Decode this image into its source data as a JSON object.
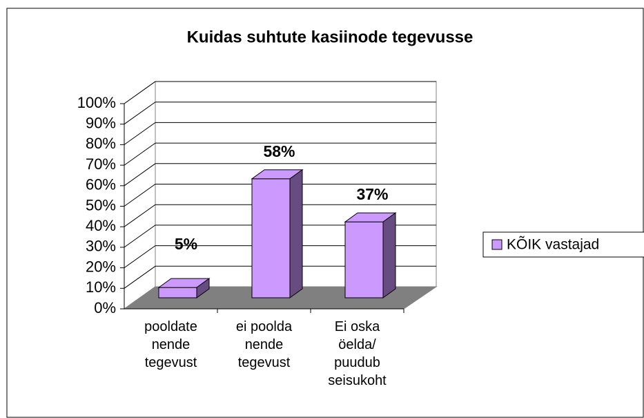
{
  "chart_data": {
    "type": "bar3d",
    "title": "Kuidas suhtute kasiinode tegevusse",
    "categories": [
      "pooldate nende tegevust",
      "ei poolda nende tegevust",
      "Ei oska öelda/ puudub seisukoht"
    ],
    "series": [
      {
        "name": "KÕIK vastajad",
        "color": "#cc99ff",
        "values": [
          5,
          58,
          37
        ],
        "value_labels": [
          "5%",
          "58%",
          "37%"
        ]
      }
    ],
    "ylim": [
      0,
      100
    ],
    "yticks": [
      {
        "value": 0,
        "label": "0%"
      },
      {
        "value": 10,
        "label": "10%"
      },
      {
        "value": 20,
        "label": "20%"
      },
      {
        "value": 30,
        "label": "30%"
      },
      {
        "value": 40,
        "label": "40%"
      },
      {
        "value": 50,
        "label": "50%"
      },
      {
        "value": 60,
        "label": "60%"
      },
      {
        "value": 70,
        "label": "70%"
      },
      {
        "value": 80,
        "label": "80%"
      },
      {
        "value": 90,
        "label": "90%"
      },
      {
        "value": 100,
        "label": "100%"
      }
    ],
    "grid": true,
    "legend": "right"
  }
}
